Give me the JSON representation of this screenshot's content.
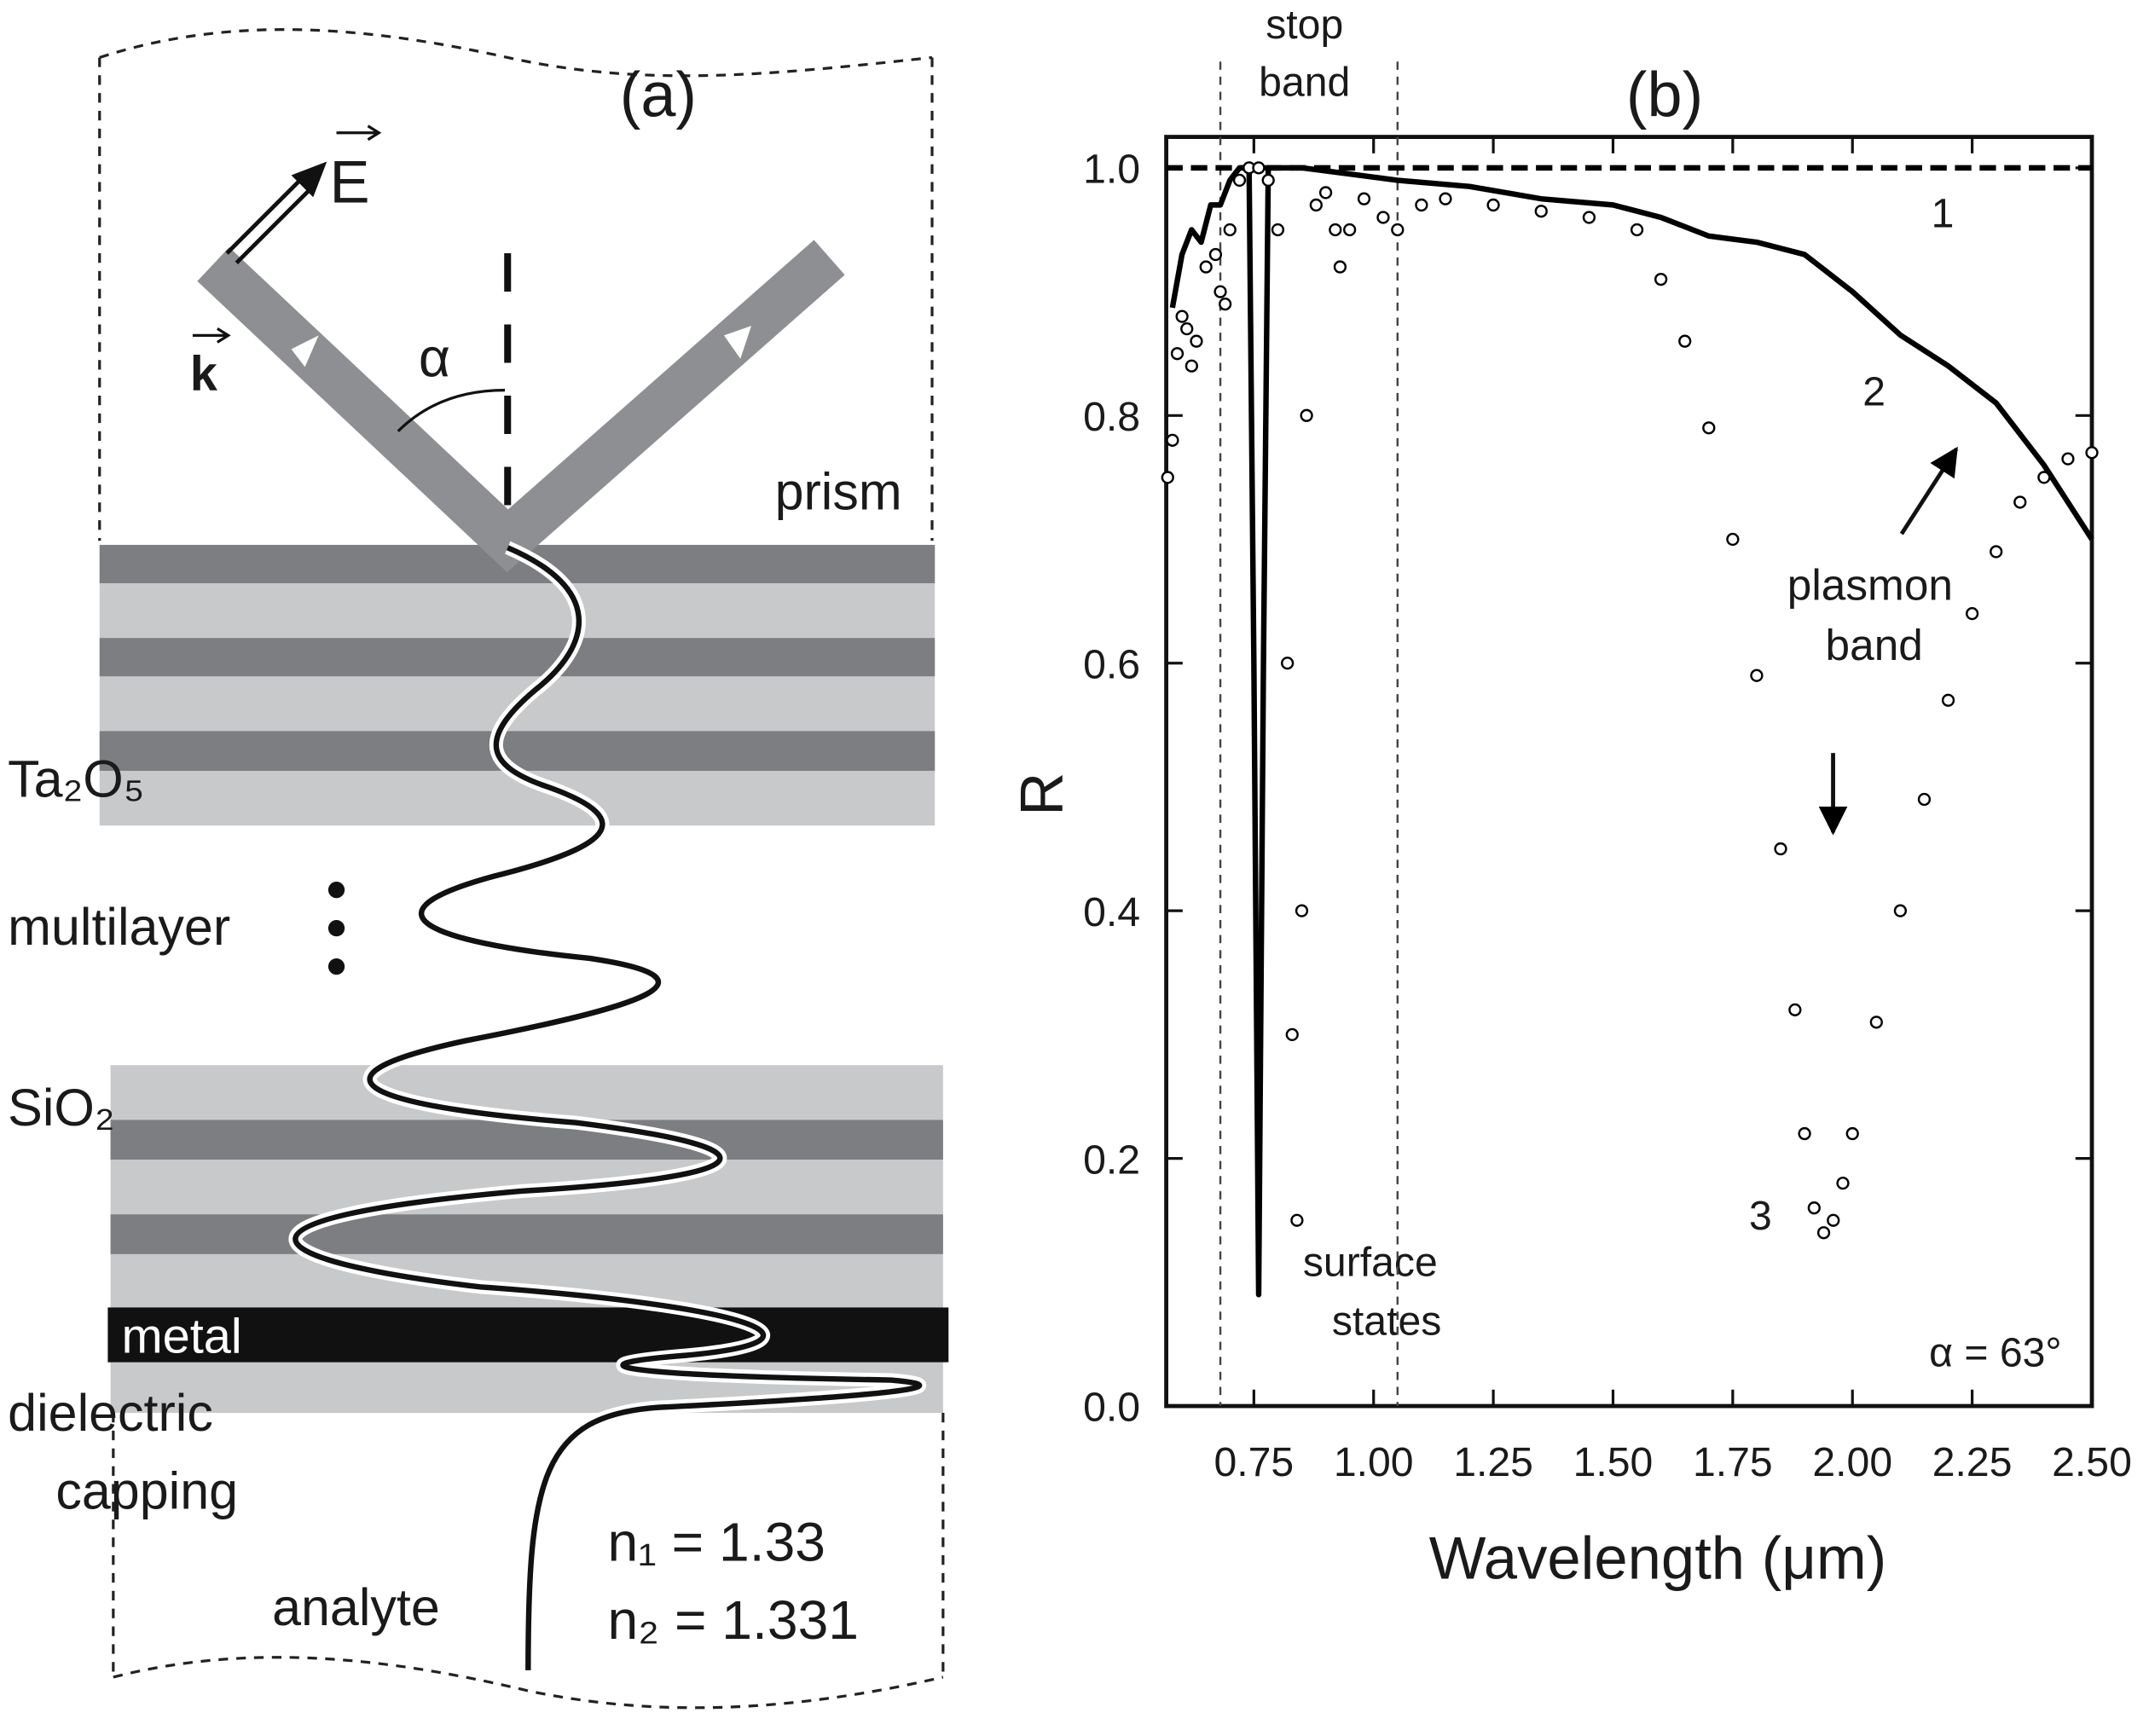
{
  "diagram": {
    "panel_label": "(a)",
    "field": "E",
    "wavevector": "k",
    "angle": "α",
    "prism": "prism",
    "high_index": "Ta₂O₅",
    "multilayer": "multilayer",
    "low_index": "SiO₂",
    "metal": "metal",
    "capping": [
      "dielectric",
      "capping"
    ],
    "analyte": "analyte",
    "indices": [
      "n₁ = 1.33",
      "n₂ = 1.331"
    ]
  },
  "chart_data": {
    "type": "line",
    "panel_label": "(b)",
    "xlabel": "Wavelength (μm)",
    "ylabel": "R",
    "xlim": [
      0.567,
      2.5
    ],
    "ylim": [
      0,
      1.025
    ],
    "xticks": [
      0.75,
      {
        "value": 1,
        "label": "1.00"
      },
      1.25,
      {
        "value": 1.5,
        "label": "1.50"
      },
      1.75,
      {
        "value": 2,
        "label": "2.00"
      },
      2.25,
      {
        "value": 2.5,
        "label": "2.50"
      }
    ],
    "yticks": [
      {
        "value": 0,
        "label": "0.0"
      },
      0.2,
      0.4,
      0.6,
      0.8,
      {
        "value": 1,
        "label": "1.0"
      }
    ],
    "vlines": [
      0.68,
      1.05
    ],
    "annotations": [
      "stop",
      "band",
      "surface",
      "states",
      "plasmon",
      "band",
      "α = 63°"
    ],
    "series": [
      {
        "name": "1",
        "color": "#000000",
        "style": "dashed",
        "x": [
          0.567,
          2.5
        ],
        "values": [
          1.0,
          1.0
        ]
      },
      {
        "name": "2",
        "color": "#000000",
        "style": "solid",
        "x": [
          0.58,
          0.6,
          0.62,
          0.64,
          0.66,
          0.68,
          0.7,
          0.72,
          0.74,
          0.75,
          0.76,
          0.77,
          0.78,
          0.85,
          0.95,
          1.05,
          1.2,
          1.35,
          1.5,
          1.6,
          1.7,
          1.8,
          1.9,
          2.0,
          2.1,
          2.2,
          2.3,
          2.4,
          2.5
        ],
        "values": [
          0.887,
          0.93,
          0.95,
          0.94,
          0.97,
          0.97,
          0.99,
          1.0,
          1.0,
          0.6,
          0.09,
          0.6,
          1.0,
          1.0,
          0.995,
          0.99,
          0.985,
          0.975,
          0.97,
          0.96,
          0.945,
          0.94,
          0.93,
          0.9,
          0.865,
          0.84,
          0.81,
          0.76,
          0.7
        ]
      },
      {
        "name": "3",
        "color": "#000000",
        "style": "markers",
        "x": [
          0.57,
          0.58,
          0.59,
          0.6,
          0.61,
          0.62,
          0.63,
          0.65,
          0.67,
          0.68,
          0.69,
          0.7,
          0.72,
          0.74,
          0.76,
          0.78,
          0.8,
          0.82,
          0.83,
          0.84,
          0.85,
          0.86,
          0.88,
          0.9,
          0.92,
          0.93,
          0.95,
          0.98,
          1.02,
          1.05,
          1.1,
          1.15,
          1.25,
          1.35,
          1.45,
          1.55,
          1.6,
          1.65,
          1.7,
          1.75,
          1.8,
          1.85,
          1.88,
          1.9,
          1.92,
          1.94,
          1.96,
          1.98,
          2.0,
          2.05,
          2.1,
          2.15,
          2.2,
          2.25,
          2.3,
          2.35,
          2.4,
          2.45,
          2.5
        ],
        "values": [
          0.75,
          0.78,
          0.85,
          0.88,
          0.87,
          0.84,
          0.86,
          0.92,
          0.93,
          0.9,
          0.89,
          0.95,
          0.99,
          1.0,
          1.0,
          0.99,
          0.95,
          0.6,
          0.3,
          0.15,
          0.4,
          0.8,
          0.97,
          0.98,
          0.95,
          0.92,
          0.95,
          0.975,
          0.96,
          0.95,
          0.97,
          0.975,
          0.97,
          0.965,
          0.96,
          0.95,
          0.91,
          0.86,
          0.79,
          0.7,
          0.59,
          0.45,
          0.32,
          0.22,
          0.16,
          0.14,
          0.15,
          0.18,
          0.22,
          0.31,
          0.4,
          0.49,
          0.57,
          0.64,
          0.69,
          0.73,
          0.75,
          0.765,
          0.77
        ]
      }
    ]
  }
}
